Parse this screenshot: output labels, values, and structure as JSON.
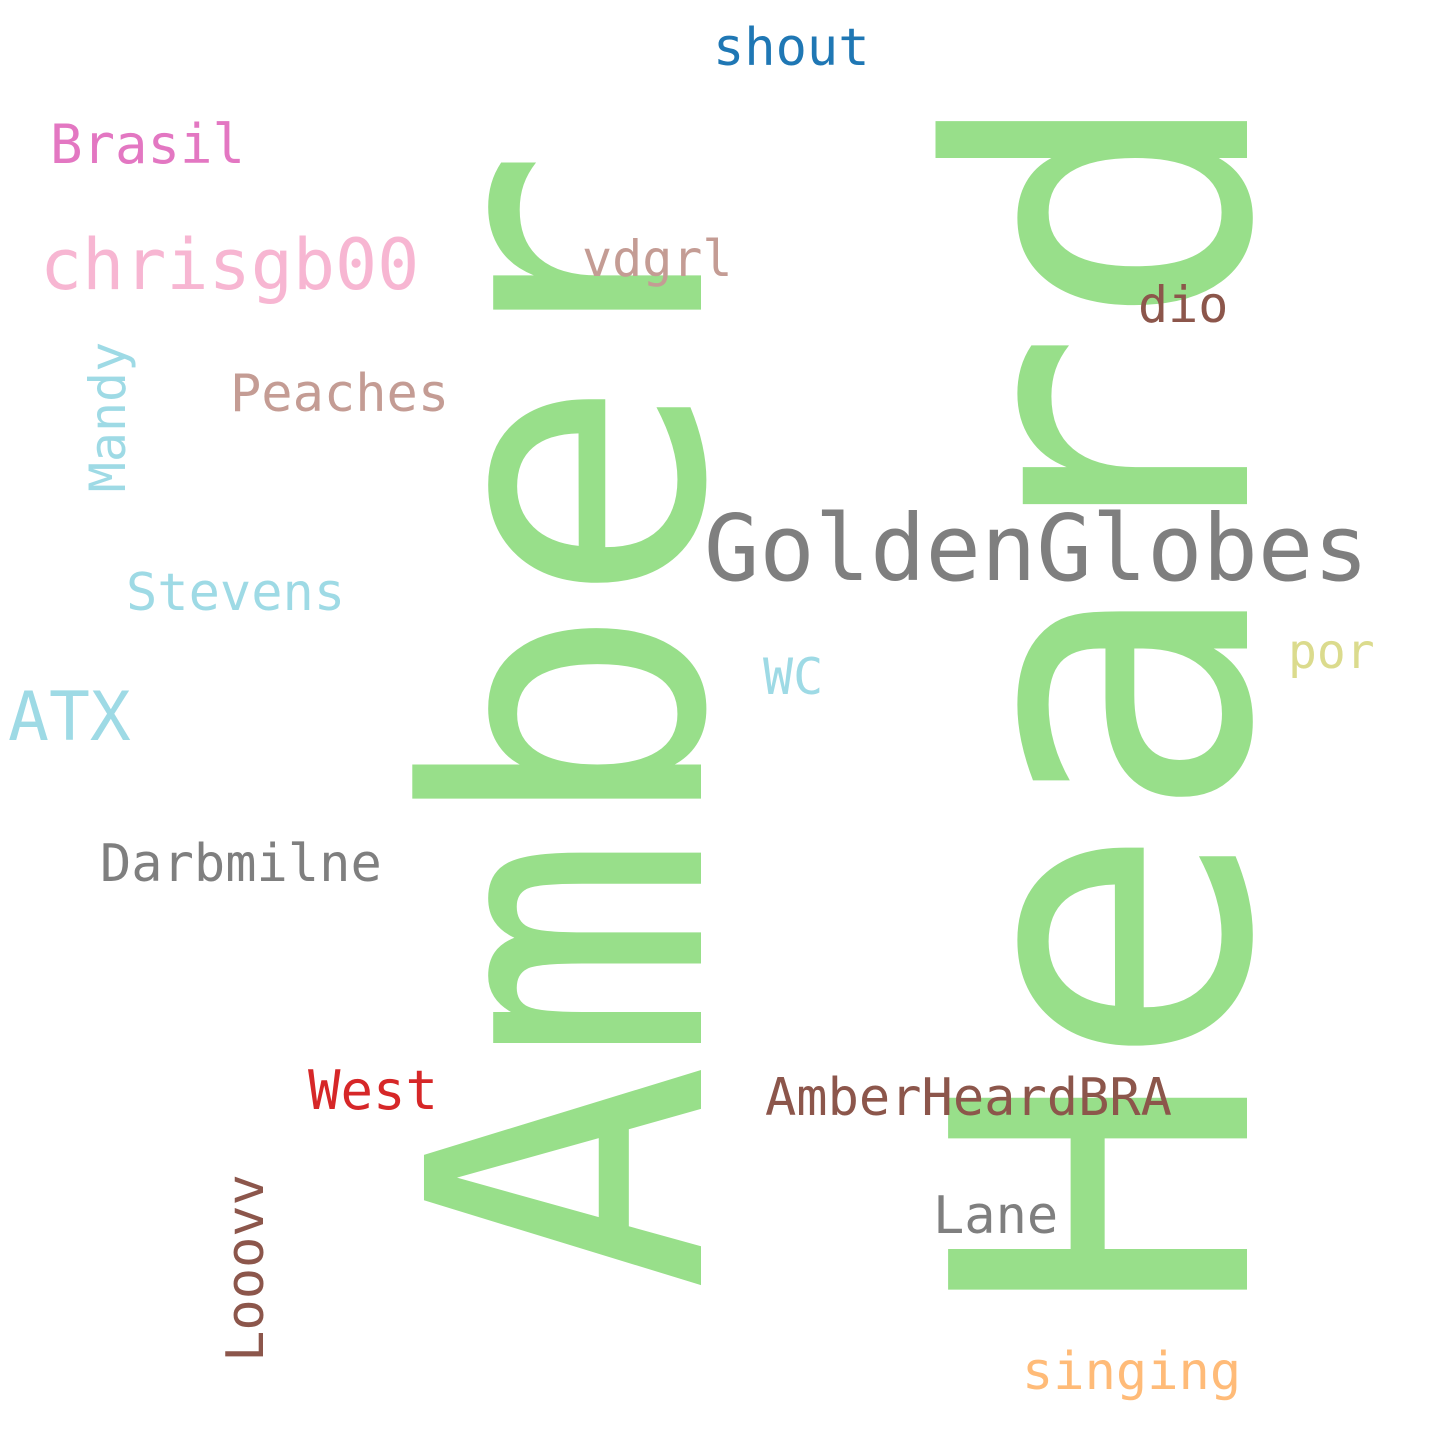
{
  "words": {
    "amber": {
      "text": "Amber",
      "color": "#98df8a",
      "orientation": "vertical"
    },
    "heard": {
      "text": "Heard",
      "color": "#98df8a",
      "orientation": "vertical"
    },
    "goldenglobes": {
      "text": "GoldenGlobes",
      "color": "#7f7f7f",
      "orientation": "horizontal"
    },
    "shout": {
      "text": "shout",
      "color": "#1f77b4",
      "orientation": "horizontal"
    },
    "brasil": {
      "text": "Brasil",
      "color": "#e377c2",
      "orientation": "horizontal"
    },
    "chrisgb00": {
      "text": "chrisgb00",
      "color": "#f7b6d2",
      "orientation": "horizontal"
    },
    "vdgrl": {
      "text": "vdgrl",
      "color": "#c49c94",
      "orientation": "horizontal"
    },
    "dio": {
      "text": "dio",
      "color": "#8c564b",
      "orientation": "horizontal"
    },
    "peaches": {
      "text": "Peaches",
      "color": "#c49c94",
      "orientation": "horizontal"
    },
    "mandy": {
      "text": "Mandy",
      "color": "#9edae5",
      "orientation": "vertical"
    },
    "stevens": {
      "text": "Stevens",
      "color": "#9edae5",
      "orientation": "horizontal"
    },
    "atx": {
      "text": "ATX",
      "color": "#9edae5",
      "orientation": "horizontal"
    },
    "wc": {
      "text": "WC",
      "color": "#9edae5",
      "orientation": "horizontal"
    },
    "por": {
      "text": "por",
      "color": "#dbdb8d",
      "orientation": "horizontal"
    },
    "darbmilne": {
      "text": "Darbmilne",
      "color": "#7f7f7f",
      "orientation": "horizontal"
    },
    "west": {
      "text": "West",
      "color": "#d62728",
      "orientation": "horizontal"
    },
    "amberheardbra": {
      "text": "AmberHeardBRA",
      "color": "#8c564b",
      "orientation": "horizontal"
    },
    "looovv": {
      "text": "Looovv",
      "color": "#8c564b",
      "orientation": "vertical"
    },
    "lane": {
      "text": "Lane",
      "color": "#7f7f7f",
      "orientation": "horizontal"
    },
    "singing": {
      "text": "singing",
      "color": "#ffbb78",
      "orientation": "horizontal"
    }
  }
}
